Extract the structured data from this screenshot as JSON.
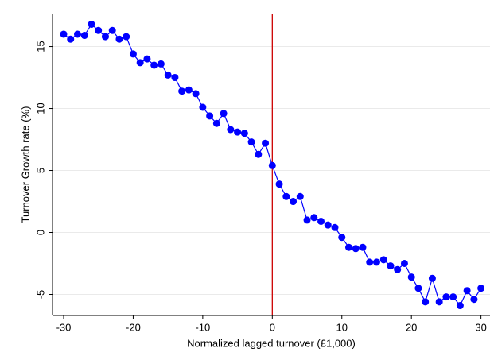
{
  "chart_data": {
    "type": "line",
    "x_label": "Normalized lagged turnover (£1,000)",
    "y_label": "Turnover Growth rate (%)",
    "x": [
      -30,
      -29,
      -28,
      -27,
      -26,
      -25,
      -24,
      -23,
      -22,
      -21,
      -20,
      -19,
      -18,
      -17,
      -16,
      -15,
      -14,
      -13,
      -12,
      -11,
      -10,
      -9,
      -8,
      -7,
      -6,
      -5,
      -4,
      -3,
      -2,
      -1,
      0,
      1,
      2,
      3,
      4,
      5,
      6,
      7,
      8,
      9,
      10,
      11,
      12,
      13,
      14,
      15,
      16,
      17,
      18,
      19,
      20,
      21,
      22,
      23,
      24,
      25,
      26,
      27,
      28,
      29,
      30
    ],
    "series": [
      {
        "name": "Turnover growth",
        "color": "#0000ff",
        "values": [
          16.0,
          15.6,
          16.0,
          15.9,
          16.8,
          16.3,
          15.8,
          16.3,
          15.6,
          15.8,
          14.4,
          13.7,
          14.0,
          13.5,
          13.6,
          12.7,
          12.5,
          11.4,
          11.5,
          11.2,
          10.1,
          9.4,
          8.8,
          9.6,
          8.3,
          8.1,
          8.0,
          7.3,
          6.3,
          7.2,
          5.4,
          3.9,
          2.9,
          2.5,
          2.9,
          1.0,
          1.2,
          0.9,
          0.6,
          0.4,
          -0.4,
          -1.2,
          -1.3,
          -1.2,
          -2.4,
          -2.4,
          -2.2,
          -2.7,
          -3.0,
          -2.5,
          -3.6,
          -4.5,
          -5.6,
          -3.7,
          -5.6,
          -5.2,
          -5.2,
          -5.9,
          -4.7,
          -5.4,
          -4.5
        ]
      }
    ],
    "xlim": [
      -31.6,
      31.3
    ],
    "ylim": [
      -6.7,
      17.6
    ],
    "xticks": [
      -30,
      -20,
      -10,
      0,
      10,
      20,
      30
    ],
    "yticks": [
      -5,
      0,
      5,
      10,
      15
    ],
    "grid": true,
    "vline": 0,
    "vline_color": "#cc0000"
  }
}
